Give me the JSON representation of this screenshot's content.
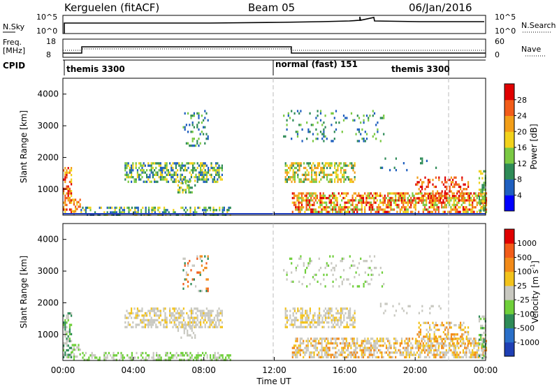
{
  "header": {
    "station": "Kerguelen (fitACF)",
    "beam": "Beam 05",
    "date": "06/Jan/2016"
  },
  "top_panel": {
    "left_label": "N.Sky",
    "right_label": "N.Search",
    "left_ticks": [
      "10^5",
      "10^0"
    ],
    "right_ticks": [
      "10^5",
      "10^0"
    ]
  },
  "freq_panel": {
    "left_label_1": "Freq.",
    "left_label_2": "[MHz]",
    "right_label": "Nave",
    "left_ticks": [
      "18",
      "8"
    ],
    "right_ticks": [
      "60",
      "0"
    ]
  },
  "cpid": {
    "label": "CPID",
    "segments": [
      "themis 3300",
      "normal (fast) 151",
      "themis 3300"
    ]
  },
  "x_ticks": [
    "00:00",
    "04:00",
    "08:00",
    "12:00",
    "16:00",
    "20:00",
    "00:00"
  ],
  "x_label": "Time UT",
  "power_colorbar": {
    "label": "Power [dB]",
    "ticks": [
      "28",
      "24",
      "20",
      "16",
      "12",
      "8",
      "4"
    ],
    "colors": [
      "#0000ff",
      "#1f5fbf",
      "#2e8b57",
      "#7ac943",
      "#f2d21b",
      "#f29e18",
      "#f25c19",
      "#e00000"
    ]
  },
  "velocity_colorbar": {
    "label": "Velocity [m s",
    "label_sup": "-1",
    "label_end": "]",
    "ticks": [
      "1000",
      "500",
      "100",
      "25",
      "-25",
      "-100",
      "-500",
      "-1000"
    ],
    "colors": [
      "#1e3fb4",
      "#2a6fc8",
      "#2e8b57",
      "#6fcf3a",
      "#c8c8c0",
      "#f2c21b",
      "#f28a18",
      "#f25c19",
      "#e00000"
    ]
  },
  "chart_data": [
    {
      "type": "heatmap",
      "title": "Power",
      "xlabel": "Time UT",
      "ylabel": "Slant Range [km]",
      "xlim": [
        0,
        24
      ],
      "ylim": [
        180,
        4500
      ],
      "y_ticks": [
        1000,
        2000,
        3000,
        4000
      ],
      "clim": [
        0,
        30
      ],
      "colorbar_label": "Power [dB]"
    },
    {
      "type": "heatmap",
      "title": "Velocity",
      "xlabel": "Time UT",
      "ylabel": "Slant Range [km]",
      "xlim": [
        0,
        24
      ],
      "ylim": [
        180,
        4500
      ],
      "y_ticks": [
        1000,
        2000,
        3000,
        4000
      ],
      "clim": [
        -1000,
        1000
      ],
      "colorbar_label": "Velocity [m s-1]"
    }
  ]
}
